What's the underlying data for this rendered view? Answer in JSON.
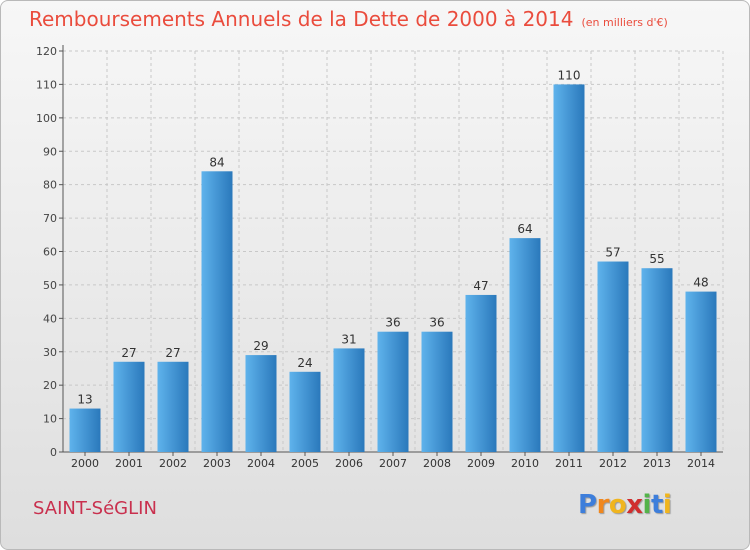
{
  "header": {
    "title": "Remboursements Annuels de la Dette de 2000 à 2014",
    "unit": "(en milliers d'€)"
  },
  "footer": {
    "commune": "SAINT-SéGLIN",
    "logo_letters": [
      "P",
      "r",
      "o",
      "x",
      "i",
      "t",
      "i"
    ],
    "logo_colors": [
      "#3d7edb",
      "#f0871e",
      "#f0b51e",
      "#d02e2e",
      "#54b34a",
      "#3d7edb",
      "#f0b51e"
    ]
  },
  "chart_data": {
    "type": "bar",
    "title": "Remboursements Annuels de la Dette de 2000 à 2014",
    "subtitle": "(en milliers d'€)",
    "xlabel": "",
    "ylabel": "",
    "categories": [
      "2000",
      "2001",
      "2002",
      "2003",
      "2004",
      "2005",
      "2006",
      "2007",
      "2008",
      "2009",
      "2010",
      "2011",
      "2012",
      "2013",
      "2014"
    ],
    "values": [
      13,
      27,
      27,
      84,
      29,
      24,
      31,
      36,
      36,
      47,
      64,
      110,
      57,
      55,
      48
    ],
    "data_labels": [
      "13",
      "27",
      "27",
      "84",
      "29",
      "24",
      "31",
      "36",
      "36",
      "47",
      "64",
      "110",
      "57",
      "55",
      "48"
    ],
    "ylim": [
      0,
      120
    ],
    "yticks": [
      0,
      10,
      20,
      30,
      40,
      50,
      60,
      70,
      80,
      90,
      100,
      110,
      120
    ],
    "grid": true,
    "bar_color": "#3f9ae0",
    "bar_color_light": "#5fb3ec",
    "bar_color_dark": "#2a78bb"
  }
}
